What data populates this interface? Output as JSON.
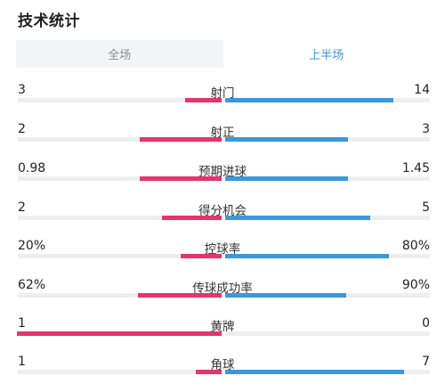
{
  "header": {
    "title": "技术统计"
  },
  "tabs": [
    {
      "label": "全场",
      "active": false
    },
    {
      "label": "上半场",
      "active": true
    }
  ],
  "colors": {
    "home_bar": "#e5356a",
    "away_bar": "#3a98de",
    "track": "#eeeeee",
    "active_tab_text": "#3d94dd"
  },
  "stats": [
    {
      "label": "射门",
      "home": "3",
      "away": "14",
      "home_share": 0.18,
      "away_share": 0.82
    },
    {
      "label": "射正",
      "home": "2",
      "away": "3",
      "home_share": 0.4,
      "away_share": 0.6
    },
    {
      "label": "预期进球",
      "home": "0.98",
      "away": "1.45",
      "home_share": 0.4,
      "away_share": 0.6
    },
    {
      "label": "得分机会",
      "home": "2",
      "away": "5",
      "home_share": 0.29,
      "away_share": 0.71
    },
    {
      "label": "控球率",
      "home": "20%",
      "away": "80%",
      "home_share": 0.2,
      "away_share": 0.8
    },
    {
      "label": "传球成功率",
      "home": "62%",
      "away": "90%",
      "home_share": 0.41,
      "away_share": 0.59
    },
    {
      "label": "黄牌",
      "home": "1",
      "away": "0",
      "home_share": 1.0,
      "away_share": 0.0
    },
    {
      "label": "角球",
      "home": "1",
      "away": "7",
      "home_share": 0.125,
      "away_share": 0.875
    }
  ]
}
